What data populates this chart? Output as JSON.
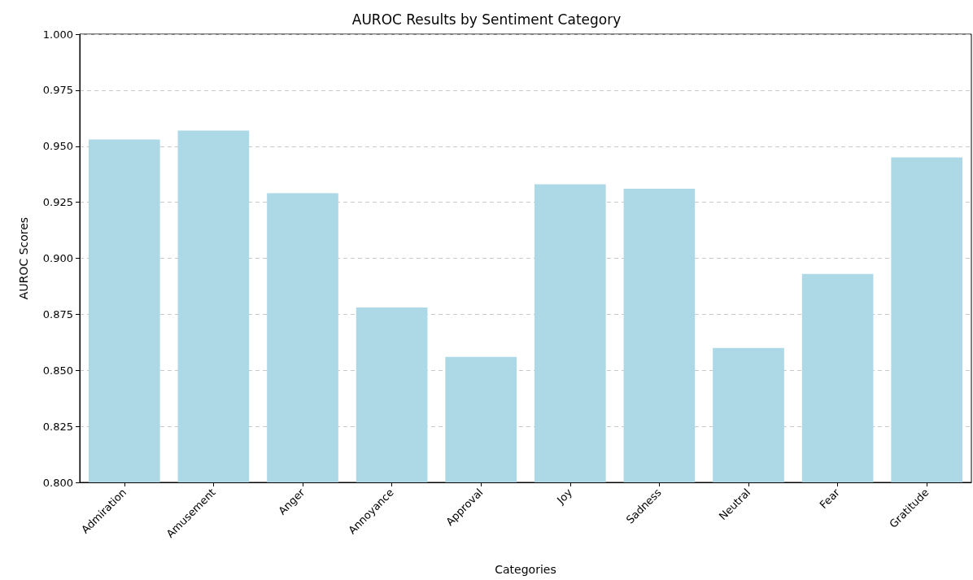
{
  "chart_data": {
    "type": "bar",
    "title": "AUROC Results by Sentiment Category",
    "xlabel": "Categories",
    "ylabel": "AUROC Scores",
    "categories": [
      "Admiration",
      "Amusement",
      "Anger",
      "Annoyance",
      "Approval",
      "Joy",
      "Sadness",
      "Neutral",
      "Fear",
      "Gratitude"
    ],
    "values": [
      0.953,
      0.957,
      0.929,
      0.878,
      0.856,
      0.933,
      0.931,
      0.86,
      0.893,
      0.945
    ],
    "color": "#add8e6",
    "ylim": [
      0.8,
      1.0
    ],
    "yticks": [
      {
        "value": 0.8,
        "label": "0.800"
      },
      {
        "value": 0.825,
        "label": "0.825"
      },
      {
        "value": 0.85,
        "label": "0.850"
      },
      {
        "value": 0.875,
        "label": "0.875"
      },
      {
        "value": 0.9,
        "label": "0.900"
      },
      {
        "value": 0.925,
        "label": "0.925"
      },
      {
        "value": 0.95,
        "label": "0.950"
      },
      {
        "value": 0.975,
        "label": "0.975"
      },
      {
        "value": 1.0,
        "label": "1.000"
      }
    ],
    "grid": "y"
  }
}
